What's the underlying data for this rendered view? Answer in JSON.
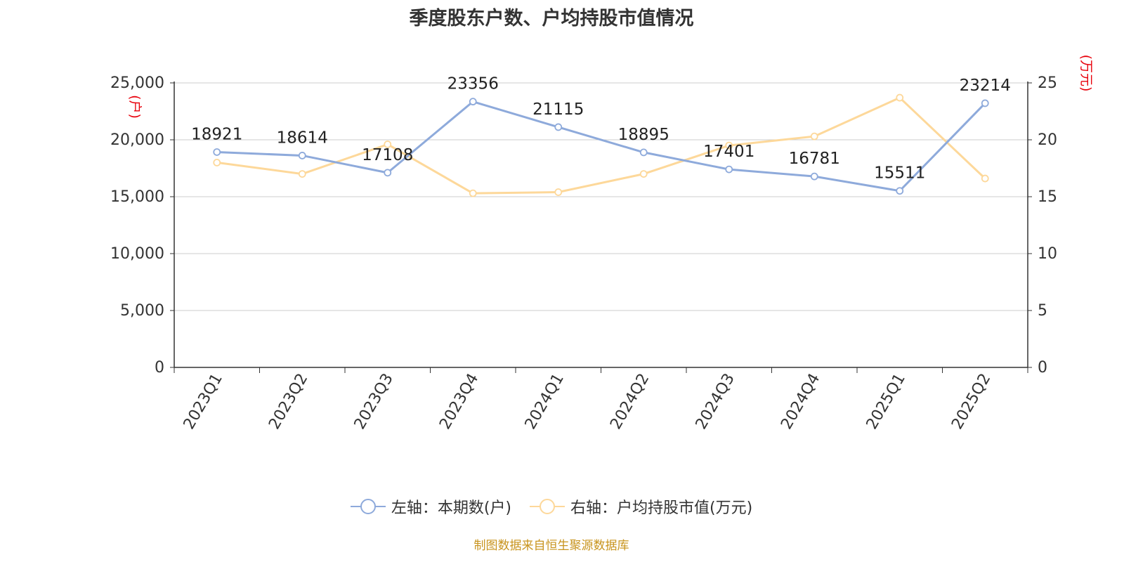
{
  "chart_data": {
    "type": "line",
    "title": "季度股东户数、户均持股市值情况",
    "categories": [
      "2023Q1",
      "2023Q2",
      "2023Q3",
      "2023Q4",
      "2024Q1",
      "2024Q2",
      "2024Q3",
      "2024Q4",
      "2025Q1",
      "2025Q2"
    ],
    "series": [
      {
        "name": "左轴：本期数(户)",
        "axis": "left",
        "color": "#8eaadb",
        "values": [
          18921,
          18614,
          17108,
          23356,
          21115,
          18895,
          17401,
          16781,
          15511,
          23214
        ],
        "labels": [
          "18921",
          "18614",
          "17108",
          "23356",
          "21115",
          "18895",
          "17401",
          "16781",
          "15511",
          "23214"
        ]
      },
      {
        "name": "右轴：户均持股市值(万元)",
        "axis": "right",
        "color": "#fdd89a",
        "values": [
          18.0,
          17.0,
          19.6,
          15.3,
          15.4,
          17.0,
          19.5,
          20.3,
          23.7,
          16.6
        ]
      }
    ],
    "left_axis": {
      "unit": "(户)",
      "ticks": [
        "0",
        "5,000",
        "10,000",
        "15,000",
        "20,000",
        "25,000"
      ],
      "ylim": [
        0,
        25000
      ]
    },
    "right_axis": {
      "unit": "(万元)",
      "ticks": [
        "0",
        "5",
        "10",
        "15",
        "20",
        "25"
      ],
      "ylim": [
        0,
        25
      ]
    },
    "grid": true,
    "legend_position": "bottom"
  },
  "source": "制图数据来自恒生聚源数据库"
}
